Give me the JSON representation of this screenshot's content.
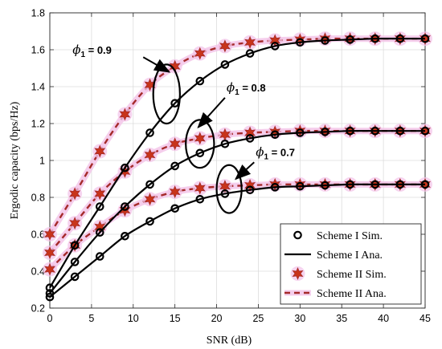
{
  "chart_data": {
    "type": "line",
    "title": "",
    "xlabel": "SNR (dB)",
    "ylabel": "Ergodic capacity (bps/Hz)",
    "xlim": [
      0,
      45
    ],
    "ylim": [
      0.2,
      1.8
    ],
    "xticks": [
      0,
      5,
      10,
      15,
      20,
      25,
      30,
      35,
      40,
      45
    ],
    "yticks": [
      0.2,
      0.4,
      0.6,
      0.8,
      1.0,
      1.2,
      1.4,
      1.6,
      1.8
    ],
    "ytick_labels": [
      "0.2",
      "0.4",
      "0.6",
      "0.8",
      "1",
      "1.2",
      "1.4",
      "1.6",
      "1.8"
    ],
    "grid": true,
    "legend_position": "bottom-right",
    "x": [
      0,
      3,
      6,
      9,
      12,
      15,
      18,
      21,
      24,
      27,
      30,
      33,
      36,
      39,
      42,
      45
    ],
    "legend": [
      {
        "label": "Scheme I Sim.",
        "style": "circle-marker"
      },
      {
        "label": "Scheme I Ana.",
        "style": "solid-line"
      },
      {
        "label": "Scheme II Sim.",
        "style": "star-marker"
      },
      {
        "label": "Scheme II Ana.",
        "style": "dashed-line"
      }
    ],
    "series": [
      {
        "scheme": "I",
        "phi": "0.9",
        "values": [
          0.31,
          0.54,
          0.75,
          0.96,
          1.15,
          1.31,
          1.43,
          1.52,
          1.58,
          1.62,
          1.64,
          1.65,
          1.655,
          1.66,
          1.66,
          1.66
        ]
      },
      {
        "scheme": "I",
        "phi": "0.8",
        "values": [
          0.28,
          0.45,
          0.61,
          0.75,
          0.87,
          0.97,
          1.04,
          1.09,
          1.12,
          1.14,
          1.15,
          1.155,
          1.16,
          1.16,
          1.16,
          1.16
        ]
      },
      {
        "scheme": "I",
        "phi": "0.7",
        "values": [
          0.26,
          0.37,
          0.48,
          0.59,
          0.67,
          0.74,
          0.79,
          0.82,
          0.84,
          0.855,
          0.86,
          0.865,
          0.87,
          0.87,
          0.87,
          0.87
        ]
      },
      {
        "scheme": "II",
        "phi": "0.9",
        "values": [
          0.6,
          0.82,
          1.05,
          1.25,
          1.41,
          1.51,
          1.58,
          1.62,
          1.64,
          1.65,
          1.655,
          1.66,
          1.66,
          1.66,
          1.66,
          1.66
        ]
      },
      {
        "scheme": "II",
        "phi": "0.8",
        "values": [
          0.5,
          0.66,
          0.82,
          0.94,
          1.03,
          1.09,
          1.12,
          1.14,
          1.15,
          1.155,
          1.16,
          1.16,
          1.16,
          1.16,
          1.16,
          1.16
        ]
      },
      {
        "scheme": "II",
        "phi": "0.7",
        "values": [
          0.41,
          0.54,
          0.64,
          0.73,
          0.79,
          0.83,
          0.85,
          0.86,
          0.865,
          0.87,
          0.87,
          0.87,
          0.87,
          0.87,
          0.87,
          0.87
        ]
      }
    ],
    "annotations": [
      {
        "phi_symbol": "ϕ",
        "subscript": "1",
        "text": " = 0.9",
        "ellipse_center": [
          14,
          1.36
        ],
        "ellipse_radii": [
          1.6,
          0.16
        ],
        "arrow_from": [
          11.2,
          1.56
        ],
        "arrow_to": [
          14.3,
          1.48
        ]
      },
      {
        "phi_symbol": "ϕ",
        "subscript": "1",
        "text": " = 0.8",
        "ellipse_center": [
          18,
          1.09
        ],
        "ellipse_radii": [
          1.7,
          0.13
        ],
        "arrow_from": [
          21,
          1.34
        ],
        "arrow_to": [
          17.8,
          1.18
        ]
      },
      {
        "phi_symbol": "ϕ",
        "subscript": "1",
        "text": " = 0.7",
        "ellipse_center": [
          21.5,
          0.845
        ],
        "ellipse_radii": [
          1.5,
          0.13
        ],
        "arrow_from": [
          24.5,
          0.99
        ],
        "arrow_to": [
          22.3,
          0.9
        ]
      }
    ]
  }
}
